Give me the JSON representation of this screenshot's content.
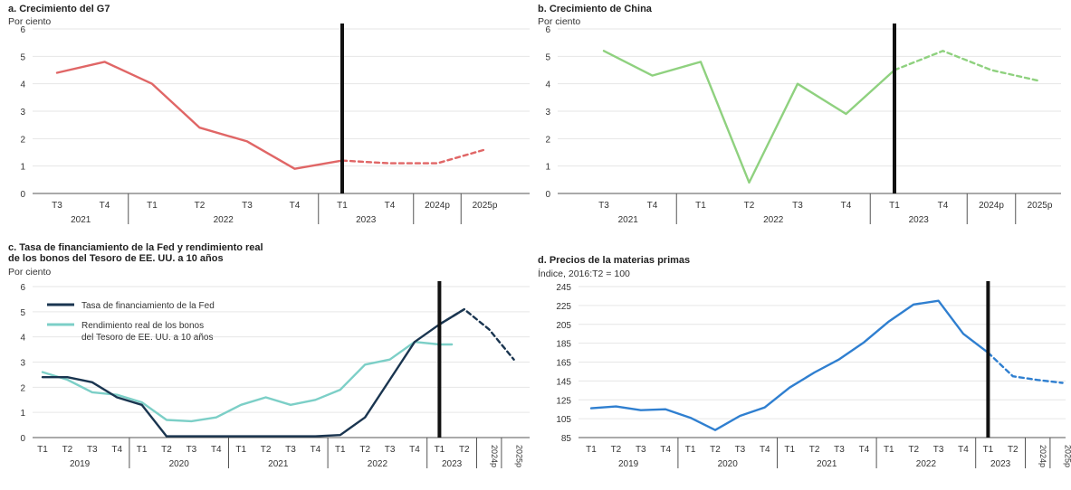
{
  "colors": {
    "g7": "#e06666",
    "china": "#8fd17f",
    "fed": "#1a3550",
    "bond": "#7ccfc7",
    "commodity": "#2f7fd0",
    "vline": "#111111",
    "grid": "#e6e6e6"
  },
  "chart_data": [
    {
      "id": "a",
      "type": "line",
      "title": "a. Crecimiento del G7",
      "unit": "Por ciento",
      "ylim": [
        0,
        6
      ],
      "yticks": [
        0,
        1,
        2,
        3,
        4,
        5,
        6
      ],
      "x_labels": [
        "T3",
        "T4",
        "T1",
        "T2",
        "T3",
        "T4",
        "T1",
        "T4",
        "2024p",
        "2025p"
      ],
      "year_groups": [
        {
          "label": "2021",
          "from": 0,
          "to": 1
        },
        {
          "label": "2022",
          "from": 2,
          "to": 5
        },
        {
          "label": "2023",
          "from": 6,
          "to": 7
        },
        {
          "label": "",
          "from": 8,
          "to": 8
        },
        {
          "label": "",
          "from": 9,
          "to": 9
        }
      ],
      "vline_index": 6,
      "grid": true,
      "series": [
        {
          "name": "",
          "color": "#e06666",
          "x": [
            0,
            1,
            2,
            3,
            4,
            5,
            6
          ],
          "y": [
            4.4,
            4.8,
            4.0,
            2.4,
            1.9,
            0.9,
            1.2
          ]
        },
        {
          "name": "",
          "color": "#e06666",
          "dashed": true,
          "x": [
            6,
            7,
            8,
            9
          ],
          "y": [
            1.2,
            1.1,
            1.1,
            1.6
          ]
        }
      ]
    },
    {
      "id": "b",
      "type": "line",
      "title": "b. Crecimiento de China",
      "unit": "Por ciento",
      "ylim": [
        0,
        6
      ],
      "yticks": [
        0,
        1,
        2,
        3,
        4,
        5,
        6
      ],
      "x_labels": [
        "T3",
        "T4",
        "T1",
        "T2",
        "T3",
        "T4",
        "T1",
        "T4",
        "2024p",
        "2025p"
      ],
      "year_groups": [
        {
          "label": "2021",
          "from": 0,
          "to": 1
        },
        {
          "label": "2022",
          "from": 2,
          "to": 5
        },
        {
          "label": "2023",
          "from": 6,
          "to": 7
        },
        {
          "label": "",
          "from": 8,
          "to": 8
        },
        {
          "label": "",
          "from": 9,
          "to": 9
        }
      ],
      "vline_index": 6,
      "grid": true,
      "series": [
        {
          "name": "",
          "color": "#8fd17f",
          "x": [
            0,
            1,
            2,
            3,
            4,
            5,
            6
          ],
          "y": [
            5.2,
            4.3,
            4.8,
            0.4,
            4.0,
            2.9,
            4.5
          ]
        },
        {
          "name": "",
          "color": "#8fd17f",
          "dashed": true,
          "x": [
            6,
            7,
            8,
            9
          ],
          "y": [
            4.5,
            5.2,
            4.5,
            4.1
          ]
        }
      ]
    },
    {
      "id": "c",
      "type": "line",
      "title": "c. Tasa de financiamiento de la Fed y rendimiento real\nde los bonos del Tesoro de EE. UU. a 10 años",
      "unit": "Por ciento",
      "ylim": [
        0,
        6
      ],
      "yticks": [
        0,
        1,
        2,
        3,
        4,
        5,
        6
      ],
      "x_labels": [
        "T1",
        "T2",
        "T3",
        "T4",
        "T1",
        "T2",
        "T3",
        "T4",
        "T1",
        "T2",
        "T3",
        "T4",
        "T1",
        "T2",
        "T3",
        "T4",
        "T1",
        "T2",
        "2024p",
        "2025p"
      ],
      "year_groups": [
        {
          "label": "2019",
          "from": 0,
          "to": 3
        },
        {
          "label": "2020",
          "from": 4,
          "to": 7
        },
        {
          "label": "2021",
          "from": 8,
          "to": 11
        },
        {
          "label": "2022",
          "from": 12,
          "to": 15
        },
        {
          "label": "2023",
          "from": 16,
          "to": 17
        },
        {
          "label": "",
          "from": 18,
          "to": 18
        },
        {
          "label": "",
          "from": 19,
          "to": 19
        }
      ],
      "vline_index": 16,
      "grid": true,
      "legend": [
        {
          "label": "Tasa de financiamiento de la Fed",
          "color": "#1a3550"
        },
        {
          "label": "Rendimiento real de los bonos\ndel Tesoro de EE. UU. a 10 años",
          "color": "#7ccfc7"
        }
      ],
      "series": [
        {
          "name": "Rendimiento real de los bonos del Tesoro de EE. UU. a 10 años",
          "color": "#7ccfc7",
          "x": [
            0,
            1,
            2,
            3,
            4,
            5,
            6,
            7,
            8,
            9,
            10,
            11,
            12,
            13,
            14,
            15,
            16,
            16.5
          ],
          "y": [
            2.6,
            2.3,
            1.8,
            1.7,
            1.4,
            0.7,
            0.65,
            0.8,
            1.3,
            1.6,
            1.3,
            1.5,
            1.9,
            2.9,
            3.1,
            3.8,
            3.7,
            3.7
          ]
        },
        {
          "name": "Tasa de financiamiento de la Fed",
          "color": "#1a3550",
          "x": [
            0,
            1,
            2,
            3,
            4,
            5,
            6,
            7,
            8,
            9,
            10,
            11,
            12,
            13,
            14,
            15,
            16,
            17
          ],
          "y": [
            2.4,
            2.4,
            2.2,
            1.6,
            1.3,
            0.05,
            0.05,
            0.05,
            0.05,
            0.05,
            0.05,
            0.05,
            0.1,
            0.8,
            2.3,
            3.8,
            4.5,
            5.1
          ]
        },
        {
          "name": "",
          "color": "#1a3550",
          "dashed": true,
          "x": [
            16,
            17,
            18,
            19
          ],
          "y": [
            4.5,
            5.1,
            4.3,
            3.1
          ]
        }
      ]
    },
    {
      "id": "d",
      "type": "line",
      "title": "d. Precios de la materias primas",
      "unit": "Índice, 2016:T2 = 100",
      "ylim": [
        85,
        245
      ],
      "yticks": [
        85,
        105,
        125,
        145,
        165,
        185,
        205,
        225,
        245
      ],
      "x_labels": [
        "T1",
        "T2",
        "T3",
        "T4",
        "T1",
        "T2",
        "T3",
        "T4",
        "T1",
        "T2",
        "T3",
        "T4",
        "T1",
        "T2",
        "T3",
        "T4",
        "T1",
        "T2",
        "2024p",
        "2025p"
      ],
      "year_groups": [
        {
          "label": "2019",
          "from": 0,
          "to": 3
        },
        {
          "label": "2020",
          "from": 4,
          "to": 7
        },
        {
          "label": "2021",
          "from": 8,
          "to": 11
        },
        {
          "label": "2022",
          "from": 12,
          "to": 15
        },
        {
          "label": "2023",
          "from": 16,
          "to": 17
        },
        {
          "label": "",
          "from": 18,
          "to": 18
        },
        {
          "label": "",
          "from": 19,
          "to": 19
        }
      ],
      "vline_index": 16,
      "grid": true,
      "series": [
        {
          "name": "",
          "color": "#2f7fd0",
          "x": [
            0,
            1,
            2,
            3,
            4,
            5,
            6,
            7,
            8,
            9,
            10,
            11,
            12,
            13,
            14,
            15,
            16
          ],
          "y": [
            116,
            118,
            114,
            115,
            106,
            93,
            108,
            117,
            138,
            154,
            168,
            186,
            208,
            226,
            230,
            195,
            175
          ]
        },
        {
          "name": "",
          "color": "#2f7fd0",
          "dashed": true,
          "x": [
            16,
            17,
            18,
            19
          ],
          "y": [
            175,
            150,
            146,
            143
          ]
        }
      ]
    }
  ]
}
